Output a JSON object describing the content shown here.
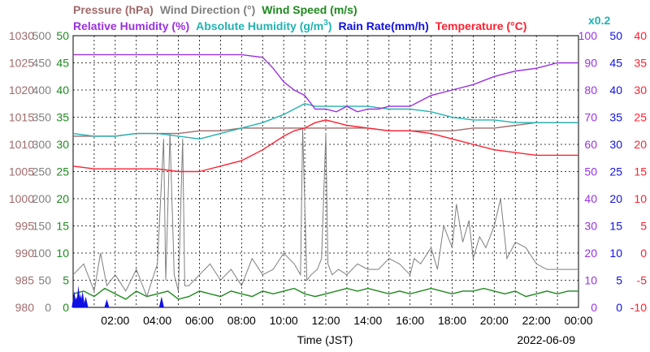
{
  "chart_data": {
    "type": "line",
    "date": "2022-06-09",
    "xlabel": "Time (JST)",
    "x_ticks": [
      "02:00",
      "04:00",
      "06:00",
      "08:00",
      "10:00",
      "12:00",
      "14:00",
      "16:00",
      "18:00",
      "20:00",
      "22:00",
      "00:00"
    ],
    "x_range_hours": [
      0,
      24
    ],
    "grid": true,
    "title_row1": [
      {
        "text": "Pressure (hPa)",
        "color": "#a06a6a"
      },
      {
        "text": "Wind Direction (°)",
        "color": "#7f7f7f"
      },
      {
        "text": "Wind Speed (m/s)",
        "color": "#1f8a1f"
      }
    ],
    "title_row2": [
      {
        "text": "Relative Humidity (%)",
        "color": "#9b30e0"
      },
      {
        "text": "Absolute Humidity (g/m",
        "sup": "3",
        "tail": ")",
        "color": "#22b2b2"
      },
      {
        "text": "Rain Rate(mm/h)",
        "color": "#1010e0"
      },
      {
        "text": "Temperature (°C)",
        "color": "#ff2030"
      }
    ],
    "scale_note": "x0.2",
    "axes": {
      "pressure": {
        "range": [
          980,
          1030
        ],
        "ticks": [
          "1030",
          "1025",
          "1020",
          "1015",
          "1010",
          "1005",
          "1000",
          "995",
          "990",
          "985",
          "980"
        ],
        "color": "#a06a6a"
      },
      "wind_direction": {
        "range": [
          0,
          500
        ],
        "ticks": [
          "500",
          "450",
          "400",
          "350",
          "300",
          "250",
          "200",
          "150",
          "100",
          "50",
          "0"
        ],
        "color": "#7f7f7f"
      },
      "wind_speed": {
        "range": [
          0,
          50
        ],
        "ticks": [
          "50",
          "45",
          "40",
          "35",
          "30",
          "25",
          "20",
          "15",
          "10",
          "5",
          "0"
        ],
        "color": "#1f8a1f"
      },
      "relative_humidity": {
        "range": [
          0,
          100
        ],
        "ticks": [
          "100",
          "90",
          "80",
          "70",
          "60",
          "50",
          "40",
          "30",
          "20",
          "10",
          "0"
        ],
        "color": "#9b30e0"
      },
      "rain_rate": {
        "range": [
          0,
          50
        ],
        "ticks": [
          "50",
          "45",
          "40",
          "35",
          "30",
          "25",
          "20",
          "15",
          "10",
          "5",
          "0"
        ],
        "color": "#1010e0"
      },
      "temperature": {
        "range": [
          -10,
          40
        ],
        "ticks": [
          "40",
          "35",
          "30",
          "25",
          "20",
          "15",
          "10",
          "5",
          "0",
          "-5",
          "-10"
        ],
        "color": "#ff2030"
      }
    },
    "series": [
      {
        "name": "Relative Humidity (%)",
        "axis": "relative_humidity",
        "color": "#9b30e0",
        "x": [
          0,
          1,
          2,
          3,
          4,
          5,
          6,
          7,
          8,
          9,
          9.5,
          10,
          10.5,
          11,
          11.5,
          12,
          12.5,
          13,
          13.5,
          14,
          14.5,
          15,
          15.5,
          16,
          16.5,
          17,
          18,
          19,
          20,
          21,
          22,
          23,
          24
        ],
        "y": [
          93,
          93,
          93,
          93,
          93,
          93,
          93,
          93,
          93,
          92,
          88,
          83,
          80,
          78,
          73,
          73,
          72,
          74,
          72,
          73,
          73,
          74,
          74,
          74,
          76,
          78,
          80,
          82,
          85,
          87,
          88,
          90,
          90
        ]
      },
      {
        "name": "Absolute Humidity (g/m3)",
        "axis": "pressure",
        "color": "#22b2b2",
        "x": [
          0,
          1,
          2,
          3,
          4,
          5,
          6,
          7,
          8,
          9,
          10,
          10.5,
          11,
          11.5,
          12,
          12.5,
          13,
          14,
          15,
          16,
          17,
          18,
          19,
          20,
          21,
          22,
          23,
          24
        ],
        "y": [
          1012,
          1011.5,
          1011.5,
          1012,
          1012,
          1011.5,
          1011,
          1012,
          1013,
          1014,
          1015.5,
          1016.5,
          1017.5,
          1017,
          1017,
          1017,
          1017,
          1017,
          1016.5,
          1016.5,
          1016,
          1015,
          1014.5,
          1014.5,
          1014,
          1014,
          1014,
          1014
        ]
      },
      {
        "name": "Pressure (hPa)",
        "axis": "pressure",
        "color": "#a06a6a",
        "x": [
          0,
          1,
          2,
          3,
          4,
          5,
          6,
          7,
          8,
          9,
          10,
          11,
          12,
          13,
          14,
          15,
          16,
          17,
          18,
          19,
          20,
          21,
          22,
          23,
          24
        ],
        "y": [
          1011.5,
          1011.5,
          1011.5,
          1012,
          1012,
          1012,
          1012.5,
          1012.5,
          1013,
          1013,
          1013,
          1013,
          1013,
          1013,
          1013,
          1012.5,
          1012.5,
          1012.5,
          1012.5,
          1013,
          1013,
          1013.5,
          1014,
          1014,
          1014
        ]
      },
      {
        "name": "Temperature (°C)",
        "axis": "temperature",
        "color": "#ff2030",
        "x": [
          0,
          1,
          2,
          3,
          4,
          5,
          6,
          7,
          8,
          9,
          10,
          10.5,
          11,
          11.5,
          12,
          12.5,
          13,
          14,
          15,
          16,
          17,
          18,
          19,
          20,
          21,
          22,
          23,
          24
        ],
        "y": [
          16,
          15.5,
          15.5,
          15.5,
          15.5,
          15,
          15,
          16,
          17,
          19,
          21.5,
          22.5,
          23,
          24,
          24.5,
          24,
          23.5,
          23,
          22.5,
          22.5,
          22,
          21,
          20,
          19,
          18.5,
          18,
          18,
          18
        ]
      },
      {
        "name": "Wind Direction (°)",
        "axis": "wind_direction",
        "color": "#7f7f7f",
        "x": [
          0,
          0.5,
          1,
          1.3,
          1.6,
          2,
          2.5,
          3,
          3.5,
          4,
          4.3,
          4.4,
          4.6,
          4.8,
          5,
          5.2,
          5.3,
          5.5,
          6,
          6.5,
          7,
          7.5,
          8,
          8.5,
          9,
          9.5,
          10,
          10.5,
          10.8,
          10.9,
          11.1,
          11.3,
          11.6,
          11.8,
          12,
          12.1,
          12.3,
          12.6,
          13,
          13.5,
          14,
          14.5,
          15,
          15.5,
          16,
          16.2,
          16.5,
          17,
          17.3,
          17.6,
          18,
          18.2,
          18.5,
          18.8,
          19,
          19.3,
          19.6,
          20,
          20.3,
          20.6,
          21,
          21.5,
          22,
          22.5,
          23,
          23.5,
          24
        ],
        "y": [
          60,
          80,
          30,
          100,
          40,
          60,
          30,
          70,
          20,
          80,
          310,
          50,
          320,
          60,
          30,
          310,
          40,
          40,
          60,
          80,
          50,
          70,
          40,
          90,
          60,
          70,
          100,
          80,
          60,
          330,
          50,
          60,
          70,
          90,
          320,
          80,
          60,
          70,
          60,
          80,
          70,
          70,
          90,
          80,
          60,
          90,
          80,
          110,
          70,
          150,
          110,
          190,
          120,
          160,
          90,
          130,
          110,
          150,
          200,
          90,
          120,
          110,
          80,
          70,
          70,
          70,
          70
        ]
      },
      {
        "name": "Wind Speed (m/s)",
        "axis": "wind_speed",
        "color": "#1f8a1f",
        "x": [
          0,
          0.5,
          1,
          1.5,
          2,
          2.5,
          3,
          3.5,
          4,
          4.5,
          5,
          5.5,
          6,
          6.5,
          7,
          7.5,
          8,
          8.5,
          9,
          9.5,
          10,
          10.5,
          11,
          11.5,
          12,
          12.5,
          13,
          13.5,
          14,
          14.5,
          15,
          15.5,
          16,
          16.5,
          17,
          17.5,
          18,
          18.5,
          19,
          19.5,
          20,
          20.5,
          21,
          21.5,
          22,
          22.5,
          23,
          23.5,
          24
        ],
        "y": [
          2.5,
          3,
          2,
          3.5,
          2.5,
          1.5,
          3,
          2,
          2.5,
          3,
          1.5,
          2,
          3,
          2.5,
          2,
          3,
          2.5,
          2,
          3,
          2.5,
          3,
          3.5,
          2.5,
          2,
          2.5,
          3,
          3.5,
          3,
          3.5,
          3,
          2.5,
          3,
          2.5,
          3,
          3.5,
          3,
          2.5,
          3,
          3,
          3.5,
          3,
          2.5,
          3,
          2,
          2.5,
          3,
          2.5,
          3,
          3
        ]
      },
      {
        "name": "Rain Rate(mm/h)",
        "axis": "rain_rate",
        "color": "#1010e0",
        "x": [
          0.05,
          0.15,
          0.25,
          0.35,
          0.45,
          0.6,
          1.6,
          4.2
        ],
        "y": [
          3,
          2,
          4,
          2.5,
          3,
          2,
          1.5,
          2
        ]
      }
    ]
  }
}
